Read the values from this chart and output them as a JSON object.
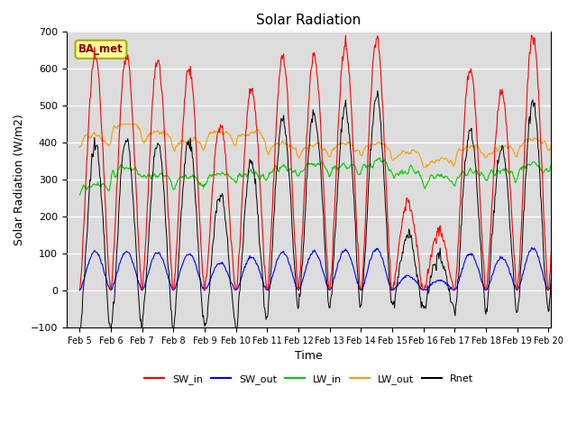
{
  "title": "Solar Radiation",
  "xlabel": "Time",
  "ylabel": "Solar Radiation (W/m2)",
  "annotation": "BA_met",
  "ylim": [
    -100,
    700
  ],
  "xlim_start": 4.58,
  "xlim_end": 20.08,
  "bg_color": "#dcdcdc",
  "fig_bg": "#ffffff",
  "series_colors": {
    "SW_in": "#ff0000",
    "SW_out": "#0000ff",
    "LW_in": "#00cc00",
    "LW_out": "#ff9900",
    "Rnet": "#000000"
  },
  "n_days": 16,
  "start_day": 5,
  "sw_peaks": [
    635,
    638,
    625,
    600,
    450,
    547,
    630,
    635,
    660,
    680,
    240,
    160,
    600,
    540,
    690,
    690
  ],
  "lw_in_base": [
    255,
    300,
    285,
    275,
    285,
    290,
    305,
    310,
    310,
    315,
    295,
    280,
    290,
    295,
    310,
    330
  ],
  "lw_out_base": [
    380,
    415,
    390,
    370,
    390,
    390,
    360,
    355,
    360,
    355,
    335,
    320,
    350,
    345,
    370,
    375
  ]
}
